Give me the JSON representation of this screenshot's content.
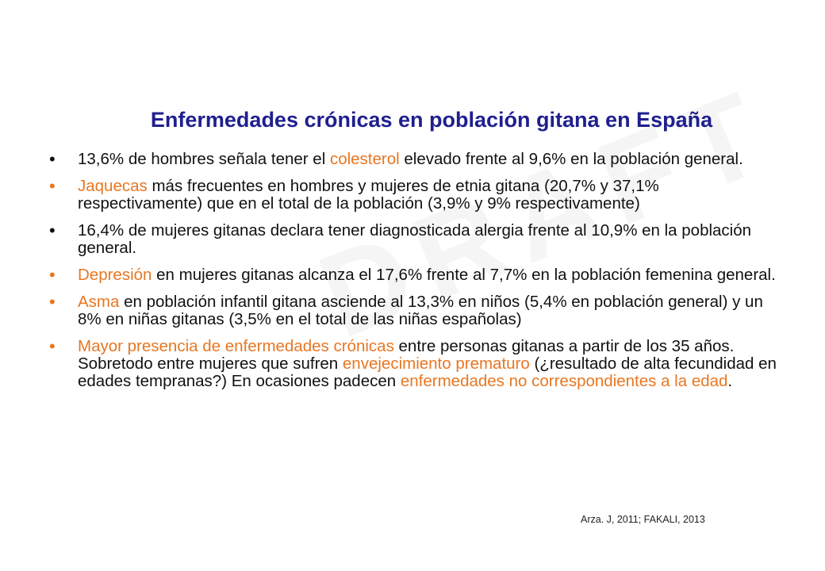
{
  "watermark": "DRAFT",
  "title": "Enfermedades crónicas en población gitana en España",
  "colors": {
    "title": "#1f1f8f",
    "highlight": "#e87722",
    "text": "#111111"
  },
  "bullets": [
    {
      "b": "black",
      "segs": [
        {
          "t": "13,6% de hombres señala tener el ",
          "h": false
        },
        {
          "t": "colesterol",
          "h": true
        },
        {
          "t": " elevado frente al 9,6% en la población general.",
          "h": false
        }
      ]
    },
    {
      "b": "orange",
      "segs": [
        {
          "t": "Jaquecas",
          "h": true
        },
        {
          "t": " más frecuentes en hombres y mujeres de etnia gitana (20,7% y 37,1% respectivamente) que en el total de la población (3,9% y 9% respectivamente)",
          "h": false
        }
      ]
    },
    {
      "b": "black",
      "segs": [
        {
          "t": "16,4% de mujeres gitanas declara tener diagnosticada alergia frente al 10,9% en la población general.",
          "h": false
        }
      ]
    },
    {
      "b": "orange",
      "segs": [
        {
          "t": "Depresión",
          "h": true
        },
        {
          "t": " en mujeres gitanas alcanza el 17,6% frente al 7,7% en la población femenina general.",
          "h": false
        }
      ]
    },
    {
      "b": "orange",
      "segs": [
        {
          "t": "Asma",
          "h": true
        },
        {
          "t": " en población infantil gitana asciende al 13,3% en niños (5,4% en población general) y un 8% en niñas gitanas (3,5% en el total de las niñas españolas)",
          "h": false
        }
      ]
    },
    {
      "b": "orange",
      "segs": [
        {
          "t": "Mayor presencia de enfermedades crónicas",
          "h": true
        },
        {
          "t": " entre personas gitanas a partir de los 35 años. Sobretodo entre mujeres que sufren ",
          "h": false
        },
        {
          "t": "envejecimiento prematuro",
          "h": true
        },
        {
          "t": " (¿resultado de alta fecundidad en edades tempranas?) En ocasiones padecen ",
          "h": false
        },
        {
          "t": "enfermedades no correspondientes a la edad",
          "h": true
        },
        {
          "t": ".",
          "h": false
        }
      ]
    }
  ],
  "bullet_char": "•",
  "source": "Arza. J, 2011; FAKALI, 2013"
}
